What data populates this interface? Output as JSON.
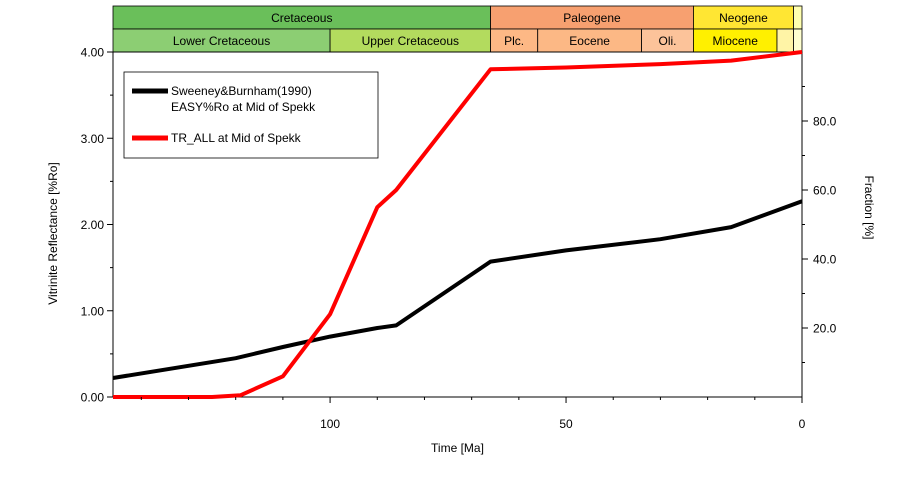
{
  "chart_data": {
    "type": "line",
    "xlabel": "Time [Ma]",
    "ylabel_left": "Vitrinite Reflectance [%Ro]",
    "ylabel_right": "Fraction [%]",
    "x_range": [
      146,
      0
    ],
    "x_reversed": true,
    "x_ticks": [
      {
        "value": 100,
        "label": "100"
      },
      {
        "value": 50,
        "label": "50"
      },
      {
        "value": 0,
        "label": "0"
      }
    ],
    "ylim_left": [
      0,
      4
    ],
    "y_left_ticks": [
      {
        "value": 0,
        "label": "0.00"
      },
      {
        "value": 1,
        "label": "1.00"
      },
      {
        "value": 2,
        "label": "2.00"
      },
      {
        "value": 3,
        "label": "3.00"
      },
      {
        "value": 4,
        "label": "4.00"
      }
    ],
    "ylim_right": [
      0,
      100
    ],
    "y_right_ticks": [
      {
        "value": 20,
        "label": "20.0"
      },
      {
        "value": 40,
        "label": "40.0"
      },
      {
        "value": 60,
        "label": "60.0"
      },
      {
        "value": 80,
        "label": "80.0"
      }
    ],
    "grid": false,
    "legend_position": "top-left",
    "series": [
      {
        "name": "Sweeney&Burnham(1990)",
        "name_line2": "EASY%Ro at Mid of Spekk",
        "color": "#000000",
        "axis": "left",
        "x": [
          146,
          120,
          110,
          100,
          90,
          86,
          66,
          50,
          30,
          15,
          0
        ],
        "y": [
          0.22,
          0.45,
          0.58,
          0.7,
          0.8,
          0.83,
          1.57,
          1.7,
          1.83,
          1.97,
          2.27
        ]
      },
      {
        "name": "TR_ALL at Mid of Spekk",
        "color": "#ff0000",
        "axis": "right",
        "x": [
          146,
          125,
          119,
          110,
          100,
          90,
          86,
          66,
          50,
          30,
          15,
          0
        ],
        "y": [
          0,
          0,
          0.5,
          6,
          24,
          55,
          60,
          95,
          95.5,
          96.5,
          97.5,
          100
        ]
      }
    ],
    "stratigraphy": {
      "top_row": [
        {
          "label": "Cretaceous",
          "start": 146,
          "end": 66,
          "color": "#6abf5a"
        },
        {
          "label": "Paleogene",
          "start": 66,
          "end": 23,
          "color": "#f7a070"
        },
        {
          "label": "Neogene",
          "start": 23,
          "end": 1.8,
          "color": "#ffe633"
        },
        {
          "label": "",
          "start": 1.8,
          "end": 0,
          "color": "#ffffb0"
        }
      ],
      "bottom_row": [
        {
          "label": "Lower Cretaceous",
          "start": 146,
          "end": 100,
          "color": "#8cce73"
        },
        {
          "label": "Upper Cretaceous",
          "start": 100,
          "end": 66,
          "color": "#b3db5e"
        },
        {
          "label": "Plc.",
          "start": 66,
          "end": 56,
          "color": "#fdb885"
        },
        {
          "label": "Eocene",
          "start": 56,
          "end": 34,
          "color": "#fcb885"
        },
        {
          "label": "Oli.",
          "start": 34,
          "end": 23,
          "color": "#fcc39a"
        },
        {
          "label": "Miocene",
          "start": 23,
          "end": 5.3,
          "color": "#fff000"
        },
        {
          "label": "",
          "start": 5.3,
          "end": 1.8,
          "color": "#fff4a6"
        },
        {
          "label": "",
          "start": 1.8,
          "end": 0,
          "color": "#ffffd0"
        }
      ]
    }
  }
}
